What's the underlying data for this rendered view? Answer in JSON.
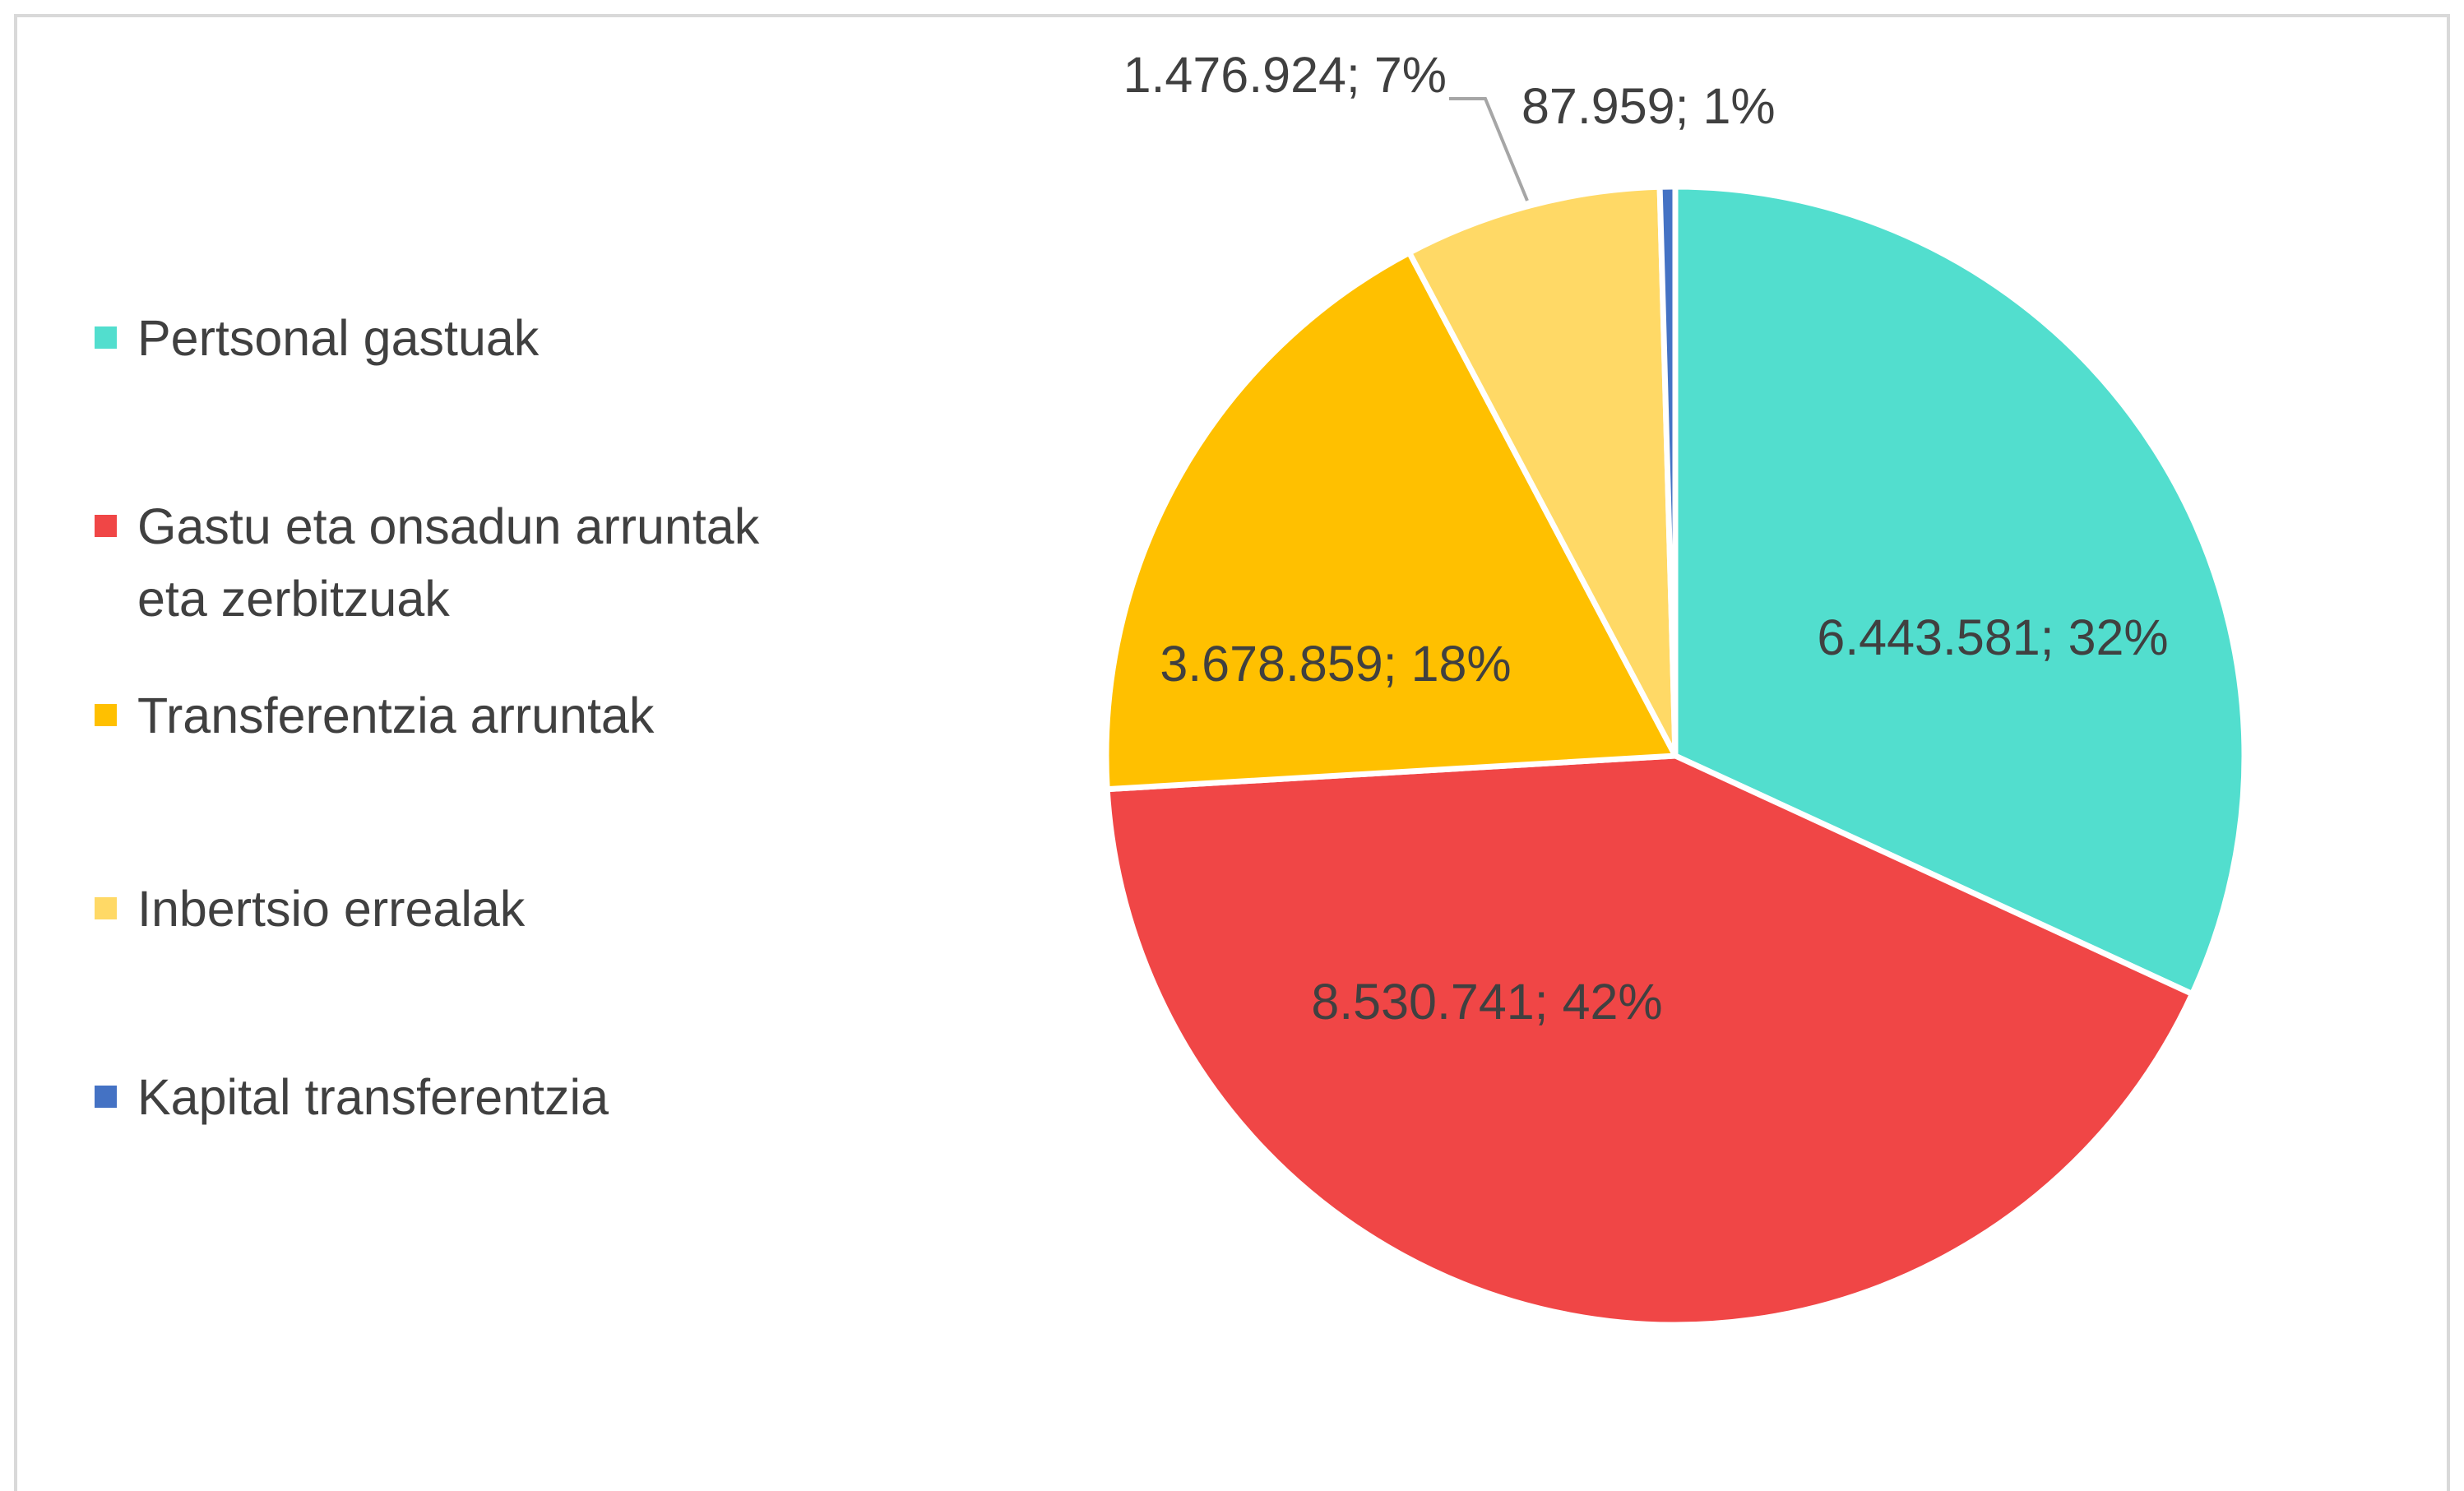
{
  "chart_data": {
    "type": "pie",
    "categories": [
      "Pertsonal gastuak",
      "Gastu eta onsadun arruntak eta zerbitzuak",
      "Transferentzia arruntak",
      "Inbertsio errealak",
      "Kapital transferentzia"
    ],
    "values": [
      6443581,
      8530741,
      3678859,
      1476924,
      87959
    ],
    "value_labels": [
      "6.443.581; 32%",
      "8.530.741; 42%",
      "3.678.859; 18%",
      "1.476.924; 7%",
      "87.959; 1%"
    ],
    "colors": [
      "#52dece",
      "#f04646",
      "#ffc000",
      "#ffd966",
      "#4472c4"
    ],
    "legend": "left"
  }
}
